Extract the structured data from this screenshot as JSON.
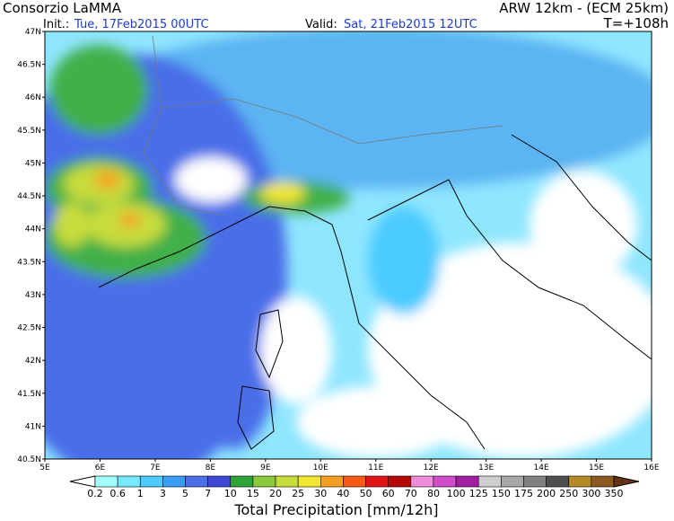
{
  "header": {
    "title": "Consorzio LaMMA",
    "model": "ARW 12km - (ECM 25km)",
    "init_label": "Init.:",
    "init_time": "Tue, 17Feb2015 00UTC",
    "valid_label": "Valid:",
    "valid_time": "Sat, 21Feb2015 12UTC",
    "lead_time": "T=+108h"
  },
  "map": {
    "lat_labels": [
      "47N",
      "46.5N",
      "46N",
      "45.5N",
      "45N",
      "44.5N",
      "44N",
      "43.5N",
      "43N",
      "42.5N",
      "42N",
      "41.5N",
      "41N",
      "40.5N"
    ],
    "lon_labels": [
      "5E",
      "6E",
      "7E",
      "8E",
      "9E",
      "10E",
      "11E",
      "12E",
      "13E",
      "14E",
      "15E",
      "16E"
    ]
  },
  "legend": {
    "labels": [
      "0.2",
      "0.6",
      "1",
      "3",
      "5",
      "7",
      "10",
      "15",
      "20",
      "25",
      "30",
      "40",
      "50",
      "60",
      "70",
      "80",
      "100",
      "125",
      "150",
      "175",
      "200",
      "250",
      "300",
      "350"
    ],
    "colors": [
      "#ffffff",
      "#a6ffff",
      "#74e8ff",
      "#4ccbff",
      "#3a9cf2",
      "#4a6ee8",
      "#3f48d6",
      "#2fa336",
      "#8cc83c",
      "#c8dc3c",
      "#f2e632",
      "#f5a023",
      "#f55a14",
      "#e11414",
      "#b40a0a",
      "#f08cdc",
      "#d24bc8",
      "#a01ea0",
      "#cfcfcf",
      "#a8a8a8",
      "#808080",
      "#505050",
      "#b48a28",
      "#8c5a1e",
      "#643214"
    ],
    "title": "Total Precipitation [mm/12h]"
  }
}
